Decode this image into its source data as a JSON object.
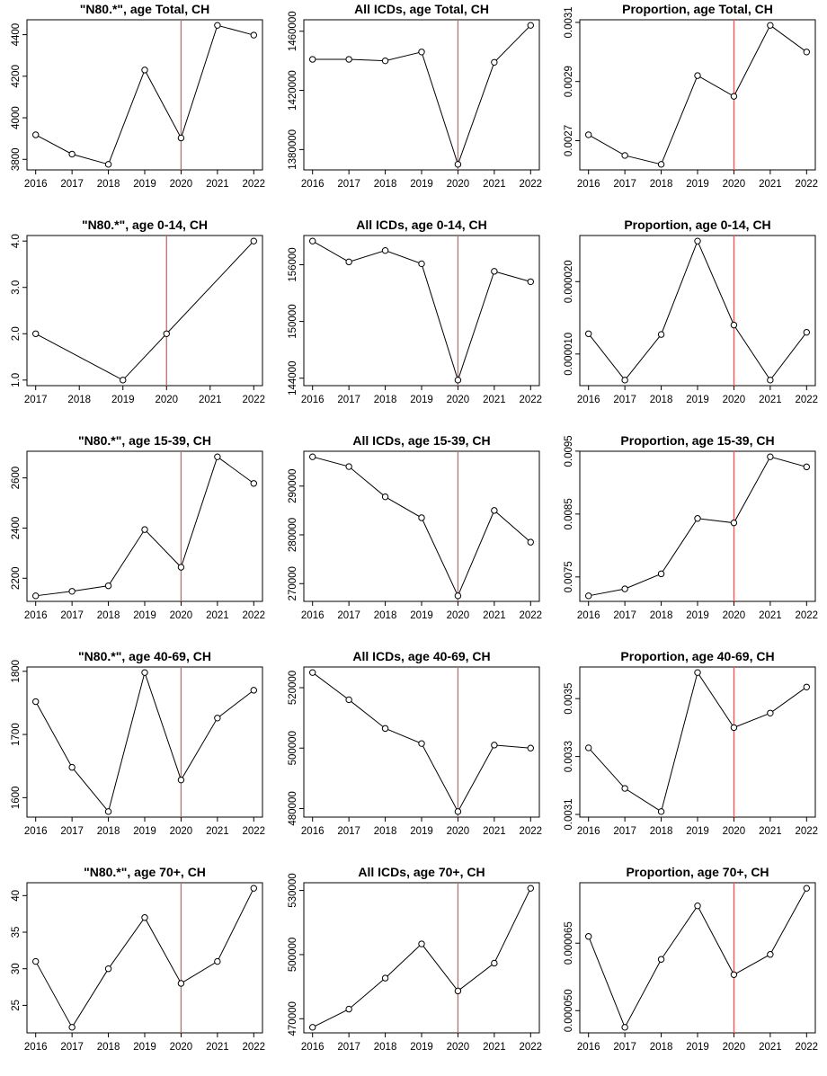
{
  "colors": {
    "line": "#000000",
    "vline": "#e06060",
    "point_fill": "#ffffff"
  },
  "chart_data": [
    {
      "type": "line",
      "title": "\"N80.*\", age Total, CH",
      "vline": 2020,
      "x": [
        2016,
        2017,
        2018,
        2019,
        2020,
        2021,
        2022
      ],
      "values": [
        3918,
        3825,
        3776,
        4230,
        3903,
        4445,
        4398
      ],
      "xlim": [
        2016,
        2022
      ],
      "xticks": [
        "2016",
        "2017",
        "2018",
        "2019",
        "2020",
        "2021",
        "2022"
      ],
      "ylim": [
        3776,
        4445
      ],
      "yticks": [
        "3800",
        "4000",
        "4200",
        "4400"
      ]
    },
    {
      "type": "line",
      "title": "All ICDs, age Total, CH",
      "vline": 2020,
      "x": [
        2016,
        2017,
        2018,
        2019,
        2020,
        2021,
        2022
      ],
      "values": [
        1441000,
        1441000,
        1440000,
        1446000,
        1370000,
        1439000,
        1464000
      ],
      "xlim": [
        2016,
        2022
      ],
      "xticks": [
        "2016",
        "2017",
        "2018",
        "2019",
        "2020",
        "2021",
        "2022"
      ],
      "ylim": [
        1370000,
        1464000
      ],
      "yticks": [
        "1380000",
        "1420000",
        "1460000"
      ]
    },
    {
      "type": "line",
      "title": "Proportion, age Total, CH",
      "vline": 2020,
      "x": [
        2016,
        2017,
        2018,
        2019,
        2020,
        2021,
        2022
      ],
      "values": [
        0.00272,
        0.00265,
        0.00262,
        0.00292,
        0.00285,
        0.00309,
        0.003
      ],
      "xlim": [
        2016,
        2022
      ],
      "xticks": [
        "2016",
        "2017",
        "2018",
        "2019",
        "2020",
        "2021",
        "2022"
      ],
      "ylim": [
        0.00262,
        0.00309
      ],
      "yticks": [
        "0.0027",
        "0.0029",
        "0.0031"
      ]
    },
    {
      "type": "line",
      "title": "\"N80.*\", age 0-14, CH",
      "vline": 2020,
      "x": [
        2017,
        2019,
        2020,
        2022
      ],
      "values": [
        2,
        1,
        2,
        4
      ],
      "xlim": [
        2017,
        2022
      ],
      "xticks": [
        "2017",
        "2018",
        "2019",
        "2020",
        "2021",
        "2022"
      ],
      "ylim": [
        1,
        4
      ],
      "yticks": [
        "1.0",
        "2.0",
        "3.0",
        "4.0"
      ]
    },
    {
      "type": "line",
      "title": "All ICDs, age 0-14, CH",
      "vline": 2020,
      "x": [
        2016,
        2017,
        2018,
        2019,
        2020,
        2021,
        2022
      ],
      "values": [
        158500,
        156300,
        157500,
        156100,
        143800,
        155300,
        154200
      ],
      "xlim": [
        2016,
        2022
      ],
      "xticks": [
        "2016",
        "2017",
        "2018",
        "2019",
        "2020",
        "2021",
        "2022"
      ],
      "ylim": [
        143800,
        158500
      ],
      "yticks": [
        "144000",
        "150000",
        "156000"
      ]
    },
    {
      "type": "line",
      "title": "Proportion, age 0-14, CH",
      "vline": 2020,
      "x": [
        2016,
        2017,
        2018,
        2019,
        2020,
        2021,
        2022
      ],
      "values": [
        1.28e-05,
        6.4e-06,
        1.27e-05,
        2.56e-05,
        1.4e-05,
        6.4e-06,
        1.3e-05
      ],
      "xlim": [
        2016,
        2022
      ],
      "xticks": [
        "2016",
        "2017",
        "2018",
        "2019",
        "2020",
        "2021",
        "2022"
      ],
      "ylim": [
        6.4e-06,
        2.56e-05
      ],
      "yticks": [
        "0.000010",
        "0.000020"
      ]
    },
    {
      "type": "line",
      "title": "\"N80.*\", age 15-39, CH",
      "vline": 2020,
      "x": [
        2016,
        2017,
        2018,
        2019,
        2020,
        2021,
        2022
      ],
      "values": [
        2130,
        2148,
        2170,
        2394,
        2244,
        2684,
        2578
      ],
      "xlim": [
        2016,
        2022
      ],
      "xticks": [
        "2016",
        "2017",
        "2018",
        "2019",
        "2020",
        "2021",
        "2022"
      ],
      "ylim": [
        2130,
        2684
      ],
      "yticks": [
        "2200",
        "2400",
        "2600"
      ]
    },
    {
      "type": "line",
      "title": "All ICDs, age 15-39, CH",
      "vline": 2020,
      "x": [
        2016,
        2017,
        2018,
        2019,
        2020,
        2021,
        2022
      ],
      "values": [
        296000,
        294000,
        287800,
        283500,
        267500,
        285000,
        278500
      ],
      "xlim": [
        2016,
        2022
      ],
      "xticks": [
        "2016",
        "2017",
        "2018",
        "2019",
        "2020",
        "2021",
        "2022"
      ],
      "ylim": [
        267500,
        296000
      ],
      "yticks": [
        "270000",
        "280000",
        "290000"
      ]
    },
    {
      "type": "line",
      "title": "Proportion, age 15-39, CH",
      "vline": 2020,
      "x": [
        2016,
        2017,
        2018,
        2019,
        2020,
        2021,
        2022
      ],
      "values": [
        0.0072,
        0.00731,
        0.00755,
        0.00843,
        0.00836,
        0.00941,
        0.00925
      ],
      "xlim": [
        2016,
        2022
      ],
      "xticks": [
        "2016",
        "2017",
        "2018",
        "2019",
        "2020",
        "2021",
        "2022"
      ],
      "ylim": [
        0.0072,
        0.00941
      ],
      "yticks": [
        "0.0075",
        "0.0085",
        "0.0095"
      ]
    },
    {
      "type": "line",
      "title": "\"N80.*\", age 40-69, CH",
      "vline": 2020,
      "x": [
        2016,
        2017,
        2018,
        2019,
        2020,
        2021,
        2022
      ],
      "values": [
        1752,
        1648,
        1578,
        1798,
        1628,
        1726,
        1770
      ],
      "xlim": [
        2016,
        2022
      ],
      "xticks": [
        "2016",
        "2017",
        "2018",
        "2019",
        "2020",
        "2021",
        "2022"
      ],
      "ylim": [
        1578,
        1798
      ],
      "yticks": [
        "1600",
        "1700",
        "1800"
      ]
    },
    {
      "type": "line",
      "title": "All ICDs, age 40-69, CH",
      "vline": 2020,
      "x": [
        2016,
        2017,
        2018,
        2019,
        2020,
        2021,
        2022
      ],
      "values": [
        525000,
        516000,
        506500,
        501500,
        479000,
        501000,
        500000
      ],
      "xlim": [
        2016,
        2022
      ],
      "xticks": [
        "2016",
        "2017",
        "2018",
        "2019",
        "2020",
        "2021",
        "2022"
      ],
      "ylim": [
        479000,
        525000
      ],
      "yticks": [
        "480000",
        "500000",
        "520000"
      ]
    },
    {
      "type": "line",
      "title": "Proportion, age 40-69, CH",
      "vline": 2020,
      "x": [
        2016,
        2017,
        2018,
        2019,
        2020,
        2021,
        2022
      ],
      "values": [
        0.00333,
        0.00319,
        0.00311,
        0.00359,
        0.0034,
        0.00345,
        0.00354
      ],
      "xlim": [
        2016,
        2022
      ],
      "xticks": [
        "2016",
        "2017",
        "2018",
        "2019",
        "2020",
        "2021",
        "2022"
      ],
      "ylim": [
        0.00311,
        0.00359
      ],
      "yticks": [
        "0.0031",
        "0.0033",
        "0.0035"
      ]
    },
    {
      "type": "line",
      "title": "\"N80.*\", age 70+, CH",
      "vline": 2020,
      "x": [
        2016,
        2017,
        2018,
        2019,
        2020,
        2021,
        2022
      ],
      "values": [
        31,
        22,
        30,
        37,
        28,
        31,
        41
      ],
      "xlim": [
        2016,
        2022
      ],
      "xticks": [
        "2016",
        "2017",
        "2018",
        "2019",
        "2020",
        "2021",
        "2022"
      ],
      "ylim": [
        22,
        41
      ],
      "yticks": [
        "25",
        "30",
        "35",
        "40"
      ]
    },
    {
      "type": "line",
      "title": "All ICDs, age 70+, CH",
      "vline": 2020,
      "x": [
        2016,
        2017,
        2018,
        2019,
        2020,
        2021,
        2022
      ],
      "values": [
        466000,
        474500,
        489000,
        505000,
        483000,
        496000,
        531000
      ],
      "xlim": [
        2016,
        2022
      ],
      "xticks": [
        "2016",
        "2017",
        "2018",
        "2019",
        "2020",
        "2021",
        "2022"
      ],
      "ylim": [
        466000,
        531000
      ],
      "yticks": [
        "470000",
        "500000",
        "530000"
      ]
    },
    {
      "type": "line",
      "title": "Proportion, age 70+, CH",
      "vline": 2020,
      "x": [
        2016,
        2017,
        2018,
        2019,
        2020,
        2021,
        2022
      ],
      "values": [
        6.65e-05,
        4.63e-05,
        6.14e-05,
        7.33e-05,
        5.8e-05,
        6.25e-05,
        7.72e-05
      ],
      "xlim": [
        2016,
        2022
      ],
      "xticks": [
        "2016",
        "2017",
        "2018",
        "2019",
        "2020",
        "2021",
        "2022"
      ],
      "ylim": [
        4.63e-05,
        7.72e-05
      ],
      "yticks": [
        "0.000050",
        "0.000065"
      ]
    }
  ]
}
